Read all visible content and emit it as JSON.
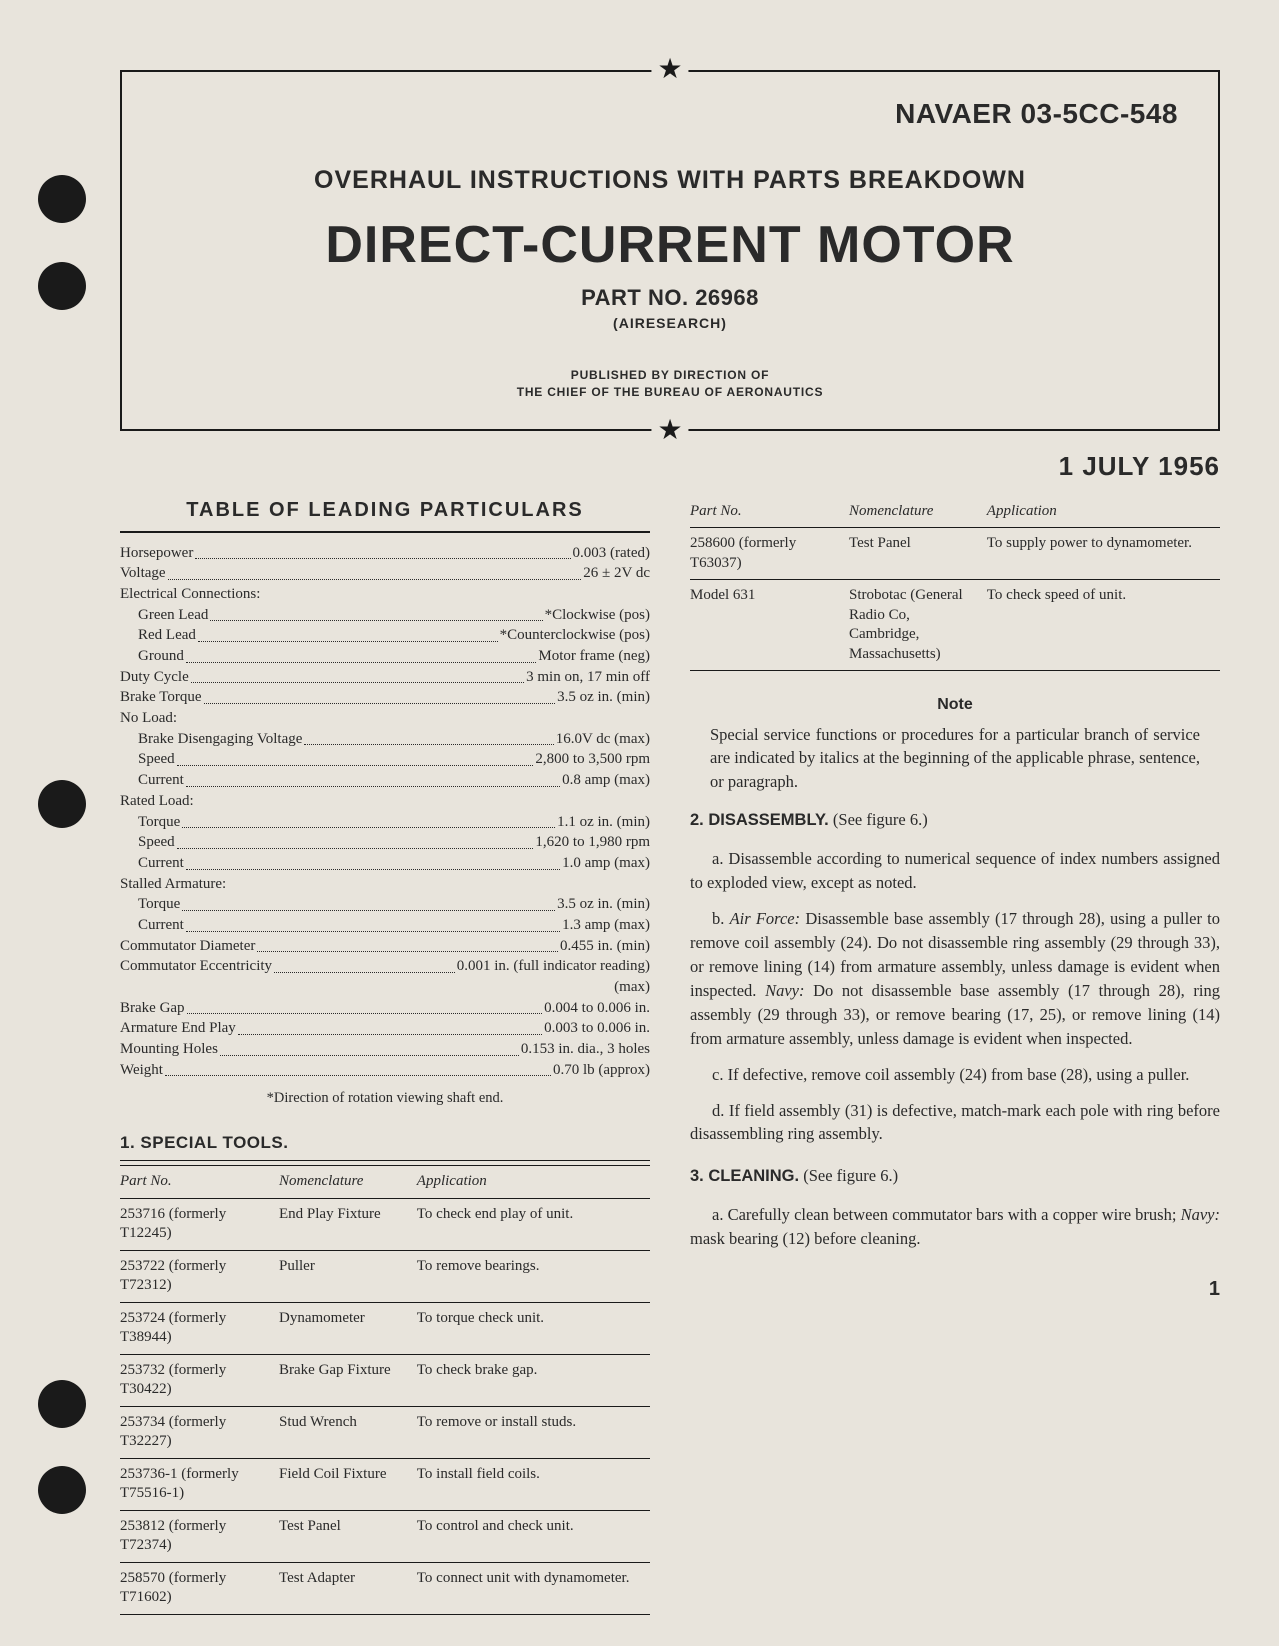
{
  "punchHoles": [
    "h1",
    "h2",
    "h3",
    "h4",
    "h5"
  ],
  "header": {
    "docId": "NAVAER 03-5CC-548",
    "subtitle": "OVERHAUL INSTRUCTIONS WITH PARTS BREAKDOWN",
    "title": "DIRECT-CURRENT MOTOR",
    "partNo": "PART NO. 26968",
    "mfr": "(AIRESEARCH)",
    "published1": "PUBLISHED BY DIRECTION OF",
    "published2": "THE CHIEF OF THE BUREAU OF AERONAUTICS",
    "star": "★"
  },
  "date": "1 JULY 1956",
  "particularsHeading": "TABLE OF LEADING PARTICULARS",
  "particulars": [
    {
      "label": "Horsepower",
      "value": "0.003 (rated)",
      "indent": false
    },
    {
      "label": "Voltage",
      "value": "26 ± 2V dc",
      "indent": false
    },
    {
      "label": "Electrical Connections:",
      "value": "",
      "indent": false,
      "nodots": true
    },
    {
      "label": "Green Lead",
      "value": "*Clockwise (pos)",
      "indent": true
    },
    {
      "label": "Red Lead",
      "value": "*Counterclockwise (pos)",
      "indent": true
    },
    {
      "label": "Ground",
      "value": "Motor frame (neg)",
      "indent": true
    },
    {
      "label": "Duty Cycle",
      "value": "3 min on, 17 min off",
      "indent": false
    },
    {
      "label": "Brake Torque",
      "value": "3.5 oz in. (min)",
      "indent": false
    },
    {
      "label": "No Load:",
      "value": "",
      "indent": false,
      "nodots": true
    },
    {
      "label": "Brake Disengaging Voltage",
      "value": "16.0V dc (max)",
      "indent": true
    },
    {
      "label": "Speed",
      "value": "2,800 to 3,500 rpm",
      "indent": true
    },
    {
      "label": "Current",
      "value": "0.8 amp (max)",
      "indent": true
    },
    {
      "label": "Rated Load:",
      "value": "",
      "indent": false,
      "nodots": true
    },
    {
      "label": "Torque",
      "value": "1.1 oz in. (min)",
      "indent": true
    },
    {
      "label": "Speed",
      "value": "1,620 to 1,980 rpm",
      "indent": true
    },
    {
      "label": "Current",
      "value": "1.0 amp (max)",
      "indent": true
    },
    {
      "label": "Stalled Armature:",
      "value": "",
      "indent": false,
      "nodots": true
    },
    {
      "label": "Torque",
      "value": "3.5 oz in. (min)",
      "indent": true
    },
    {
      "label": "Current",
      "value": "1.3 amp (max)",
      "indent": true
    },
    {
      "label": "Commutator Diameter",
      "value": "0.455 in. (min)",
      "indent": false
    },
    {
      "label": "Commutator Eccentricity",
      "value": "0.001 in. (full indicator reading)",
      "indent": false
    },
    {
      "label": "",
      "value": "(max)",
      "indent": false,
      "nodots": true,
      "rightonly": true
    },
    {
      "label": "Brake Gap",
      "value": "0.004 to 0.006 in.",
      "indent": false
    },
    {
      "label": "Armature End Play",
      "value": "0.003 to 0.006 in.",
      "indent": false
    },
    {
      "label": "Mounting Holes",
      "value": "0.153 in. dia., 3 holes",
      "indent": false
    },
    {
      "label": "Weight",
      "value": "0.70 lb (approx)",
      "indent": false
    }
  ],
  "footnote": "*Direction of rotation viewing shaft end.",
  "toolsHeading": "1. SPECIAL TOOLS.",
  "toolsColumns": {
    "c1": "Part No.",
    "c2": "Nomenclature",
    "c3": "Application"
  },
  "tools": [
    {
      "pn": "253716 (formerly T12245)",
      "nom": "End Play Fixture",
      "app": "To check end play of unit."
    },
    {
      "pn": "253722 (formerly T72312)",
      "nom": "Puller",
      "app": "To remove bearings."
    },
    {
      "pn": "253724 (formerly T38944)",
      "nom": "Dynamometer",
      "app": "To torque check unit."
    },
    {
      "pn": "253732 (formerly T30422)",
      "nom": "Brake Gap Fixture",
      "app": "To check brake gap."
    },
    {
      "pn": "253734 (formerly T32227)",
      "nom": "Stud Wrench",
      "app": "To remove or install studs."
    },
    {
      "pn": "253736-1 (formerly T75516-1)",
      "nom": "Field Coil Fixture",
      "app": "To install field coils."
    },
    {
      "pn": "253812 (formerly T72374)",
      "nom": "Test Panel",
      "app": "To control and check unit."
    },
    {
      "pn": "258570 (formerly T71602)",
      "nom": "Test Adapter",
      "app": "To connect unit with dynamometer."
    }
  ],
  "tools2": [
    {
      "pn": "258600 (formerly T63037)",
      "nom": "Test Panel",
      "app": "To supply power to dynamometer."
    },
    {
      "pn": "Model 631",
      "nom": "Strobotac (General Radio Co, Cambridge, Massachusetts)",
      "app": "To check speed of unit."
    }
  ],
  "noteHeading": "Note",
  "noteText": "Special service functions or procedures for a particular branch of service are indicated by italics at the beginning of the applicable phrase, sentence, or paragraph.",
  "sec2": {
    "heading": "2. DISASSEMBLY.",
    "seefig": " (See figure 6.)",
    "a": "a. Disassemble according to numerical sequence of index numbers assigned to exploded view, except as noted.",
    "b_pre": "b. ",
    "b_it1": "Air Force:",
    "b_mid": " Disassemble base assembly (17 through 28), using a puller to remove coil assembly (24). Do not disassemble ring assembly (29 through 33), or remove lining (14) from armature assembly, unless damage is evident when inspected. ",
    "b_it2": "Navy:",
    "b_post": " Do not disassemble base assembly (17 through 28), ring assembly (29 through 33), or remove bearing (17, 25), or remove lining (14) from armature assembly, unless damage is evident when inspected.",
    "c": "c. If defective, remove coil assembly (24) from base (28), using a puller.",
    "d": "d. If field assembly (31) is defective, match-mark each pole with ring before disassembling ring assembly."
  },
  "sec3": {
    "heading": "3. CLEANING.",
    "seefig": " (See figure 6.)",
    "a_pre": "a. Carefully clean between commutator bars with a copper wire brush; ",
    "a_it": "Navy:",
    "a_post": " mask bearing (12) before cleaning."
  },
  "pageNum": "1"
}
